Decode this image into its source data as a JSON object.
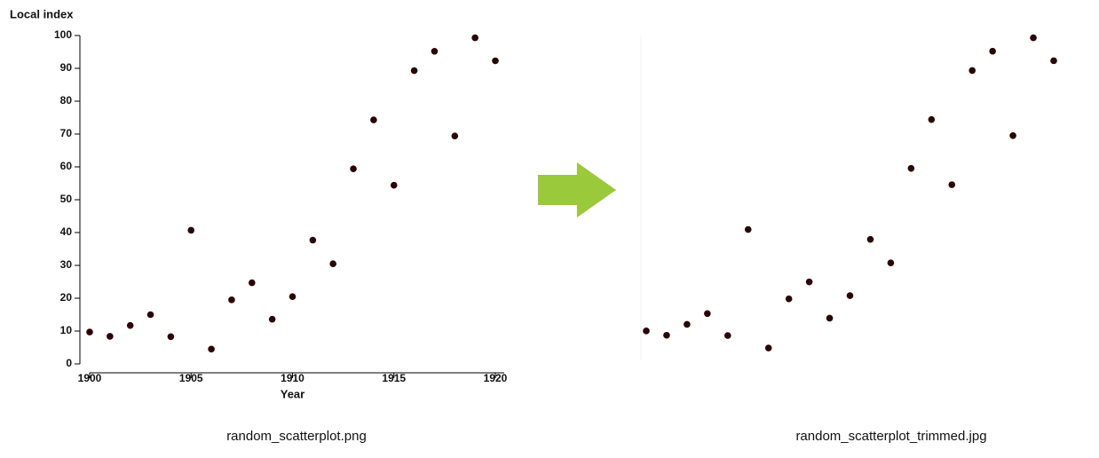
{
  "chart_data": [
    {
      "type": "scatter",
      "y_label": "Local index",
      "x_label": "Year",
      "caption": "random_scatterplot.png",
      "x": [
        1900,
        1901,
        1902,
        1903,
        1904,
        1905,
        1906,
        1907,
        1908,
        1909,
        1910,
        1911,
        1912,
        1913,
        1914,
        1915,
        1916,
        1917,
        1918,
        1919,
        1920
      ],
      "values": [
        9.7,
        8.4,
        11.7,
        15,
        8.3,
        40.7,
        4.5,
        19.5,
        24.7,
        13.6,
        20.5,
        37.7,
        30.5,
        59.4,
        74.3,
        54.4,
        89.3,
        95.2,
        69.4,
        99.3,
        92.3
      ],
      "color": "#2b0505",
      "xlim": [
        1900,
        1920
      ],
      "ylim": [
        0,
        100
      ],
      "xticks": [
        1900,
        1905,
        1910,
        1915,
        1920
      ],
      "yticks": [
        0,
        10,
        20,
        30,
        40,
        50,
        60,
        70,
        80,
        90,
        100
      ]
    },
    {
      "type": "scatter",
      "caption": "random_scatterplot_trimmed.jpg",
      "x": [
        1900,
        1901,
        1902,
        1903,
        1904,
        1905,
        1906,
        1907,
        1908,
        1909,
        1910,
        1911,
        1912,
        1913,
        1914,
        1915,
        1916,
        1917,
        1918,
        1919,
        1920
      ],
      "values": [
        9.7,
        8.4,
        11.7,
        15,
        8.3,
        40.7,
        4.5,
        19.5,
        24.7,
        13.6,
        20.5,
        37.7,
        30.5,
        59.4,
        74.3,
        54.4,
        89.3,
        95.2,
        69.4,
        99.3,
        92.3
      ],
      "color": "#2b0505",
      "xlim": [
        1900,
        1920
      ],
      "ylim": [
        0,
        100
      ]
    }
  ]
}
